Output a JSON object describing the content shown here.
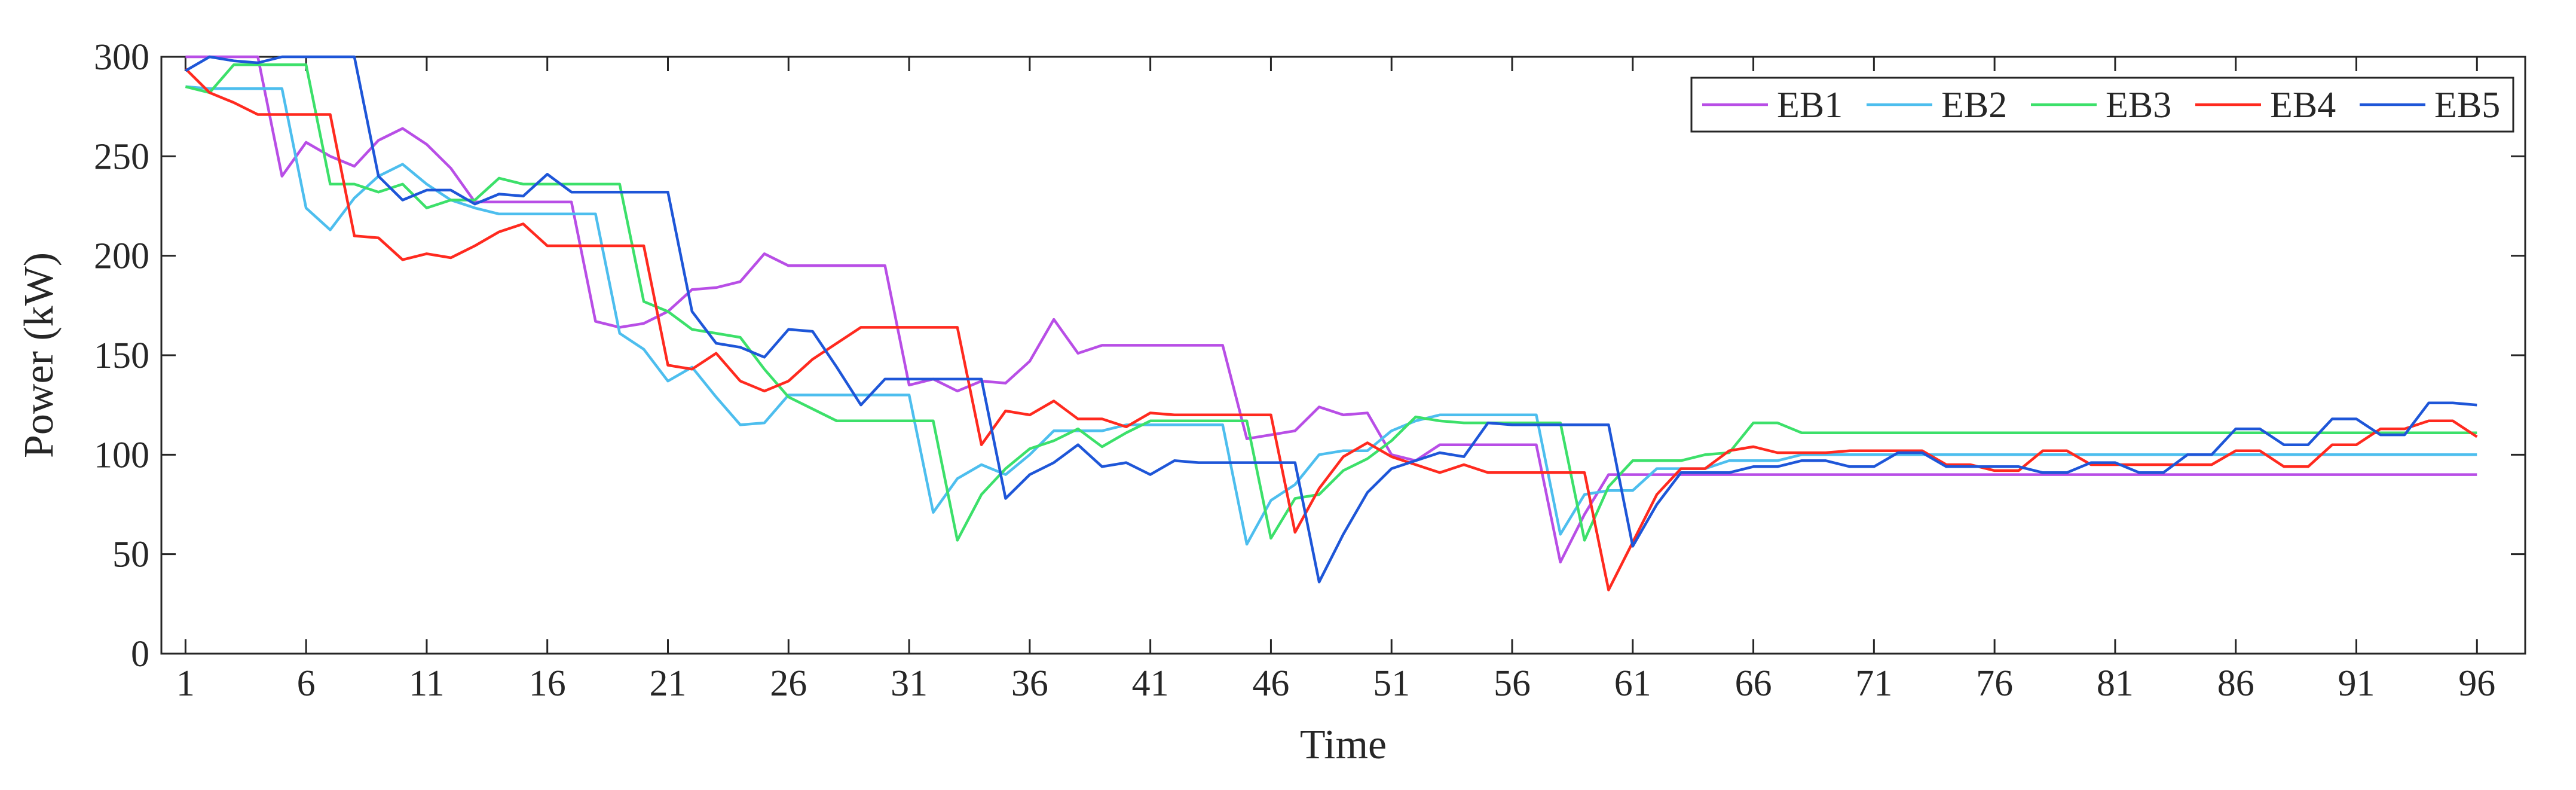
{
  "chart_data": {
    "type": "line",
    "xlabel": "Time",
    "ylabel": "Power (kW)",
    "xlim": [
      0,
      98
    ],
    "ylim": [
      0,
      300
    ],
    "xticks": [
      1,
      6,
      11,
      16,
      21,
      26,
      31,
      36,
      41,
      46,
      51,
      56,
      61,
      66,
      71,
      76,
      81,
      86,
      91,
      96
    ],
    "yticks": [
      0,
      50,
      100,
      150,
      200,
      250,
      300
    ],
    "grid": false,
    "legend_position": "top-right",
    "legend_orientation": "horizontal",
    "x": [
      1,
      2,
      3,
      4,
      5,
      6,
      7,
      8,
      9,
      10,
      11,
      12,
      13,
      14,
      15,
      16,
      17,
      18,
      19,
      20,
      21,
      22,
      23,
      24,
      25,
      26,
      27,
      28,
      29,
      30,
      31,
      32,
      33,
      34,
      35,
      36,
      37,
      38,
      39,
      40,
      41,
      42,
      43,
      44,
      45,
      46,
      47,
      48,
      49,
      50,
      51,
      52,
      53,
      54,
      55,
      56,
      57,
      58,
      59,
      60,
      61,
      62,
      63,
      64,
      65,
      66,
      67,
      68,
      69,
      70,
      71,
      72,
      73,
      74,
      75,
      76,
      77,
      78,
      79,
      80,
      81,
      82,
      83,
      84,
      85,
      86,
      87,
      88,
      89,
      90,
      91,
      92,
      93,
      94,
      95,
      96
    ],
    "series": [
      {
        "name": "EB1",
        "color": "#b84ee6",
        "values": [
          300,
          300,
          300,
          300,
          240,
          257,
          250,
          245,
          258,
          264,
          256,
          244,
          227,
          227,
          227,
          227,
          227,
          167,
          164,
          166,
          172,
          183,
          184,
          187,
          201,
          195,
          195,
          195,
          195,
          195,
          135,
          138,
          132,
          137,
          136,
          147,
          168,
          151,
          155,
          155,
          155,
          155,
          155,
          155,
          108,
          110,
          112,
          124,
          120,
          121,
          100,
          97,
          105,
          105,
          105,
          105,
          105,
          46,
          70,
          90,
          90,
          90,
          90,
          90,
          90,
          90,
          90,
          90,
          90,
          90,
          90,
          90,
          90,
          90,
          90,
          90,
          90,
          90,
          90,
          90,
          90,
          90,
          90,
          90,
          90,
          90,
          90,
          90,
          90,
          90,
          90,
          90,
          90,
          90,
          90,
          90
        ]
      },
      {
        "name": "EB2",
        "color": "#4dbeee",
        "values": [
          285,
          284,
          284,
          284,
          284,
          224,
          213,
          229,
          240,
          246,
          236,
          228,
          224,
          221,
          221,
          221,
          221,
          221,
          161,
          153,
          137,
          144,
          129,
          115,
          116,
          130,
          130,
          130,
          130,
          130,
          130,
          71,
          88,
          95,
          90,
          100,
          112,
          112,
          112,
          115,
          115,
          115,
          115,
          115,
          55,
          77,
          85,
          100,
          102,
          102,
          112,
          117,
          120,
          120,
          120,
          120,
          120,
          60,
          80,
          82,
          82,
          93,
          93,
          93,
          97,
          97,
          97,
          100,
          100,
          100,
          100,
          100,
          100,
          100,
          100,
          100,
          100,
          100,
          100,
          100,
          100,
          100,
          100,
          100,
          100,
          100,
          100,
          100,
          100,
          100,
          100,
          100,
          100,
          100,
          100,
          100
        ]
      },
      {
        "name": "EB3",
        "color": "#3ce06a",
        "values": [
          285,
          282,
          296,
          296,
          296,
          296,
          236,
          236,
          232,
          236,
          224,
          228,
          228,
          239,
          236,
          236,
          236,
          236,
          236,
          177,
          172,
          163,
          161,
          159,
          143,
          129,
          123,
          117,
          117,
          117,
          117,
          117,
          57,
          80,
          93,
          103,
          107,
          113,
          104,
          111,
          117,
          117,
          117,
          117,
          117,
          58,
          78,
          80,
          92,
          98,
          107,
          119,
          117,
          116,
          116,
          116,
          116,
          116,
          57,
          84,
          97,
          97,
          97,
          100,
          101,
          116,
          116,
          111,
          111,
          111,
          111,
          111,
          111,
          111,
          111,
          111,
          111,
          111,
          111,
          111,
          111,
          111,
          111,
          111,
          111,
          111,
          111,
          111,
          111,
          111,
          111,
          111,
          111,
          111,
          111,
          111
        ]
      },
      {
        "name": "EB4",
        "color": "#ff2a1f",
        "values": [
          294,
          282,
          277,
          271,
          271,
          271,
          271,
          210,
          209,
          198,
          201,
          199,
          205,
          212,
          216,
          205,
          205,
          205,
          205,
          205,
          145,
          143,
          151,
          137,
          132,
          137,
          148,
          156,
          164,
          164,
          164,
          164,
          164,
          105,
          122,
          120,
          127,
          118,
          118,
          114,
          121,
          120,
          120,
          120,
          120,
          120,
          61,
          83,
          99,
          106,
          99,
          95,
          91,
          95,
          91,
          91,
          91,
          91,
          91,
          32,
          56,
          80,
          93,
          93,
          102,
          104,
          101,
          101,
          101,
          102,
          102,
          102,
          102,
          95,
          95,
          92,
          92,
          102,
          102,
          95,
          95,
          95,
          95,
          95,
          95,
          102,
          102,
          94,
          94,
          105,
          105,
          113,
          113,
          117,
          117,
          109
        ]
      },
      {
        "name": "EB5",
        "color": "#1e56d8",
        "values": [
          293,
          300,
          298,
          297,
          300,
          300,
          300,
          300,
          240,
          228,
          233,
          233,
          226,
          231,
          230,
          241,
          232,
          232,
          232,
          232,
          232,
          172,
          156,
          154,
          149,
          163,
          162,
          144,
          125,
          138,
          138,
          138,
          138,
          138,
          78,
          90,
          96,
          105,
          94,
          96,
          90,
          97,
          96,
          96,
          96,
          96,
          96,
          36,
          60,
          81,
          93,
          97,
          101,
          99,
          116,
          115,
          115,
          115,
          115,
          115,
          54,
          75,
          91,
          91,
          91,
          94,
          94,
          97,
          97,
          94,
          94,
          101,
          101,
          94,
          94,
          94,
          94,
          91,
          91,
          96,
          96,
          91,
          91,
          100,
          100,
          113,
          113,
          105,
          105,
          118,
          118,
          110,
          110,
          126,
          126,
          125
        ]
      }
    ]
  }
}
